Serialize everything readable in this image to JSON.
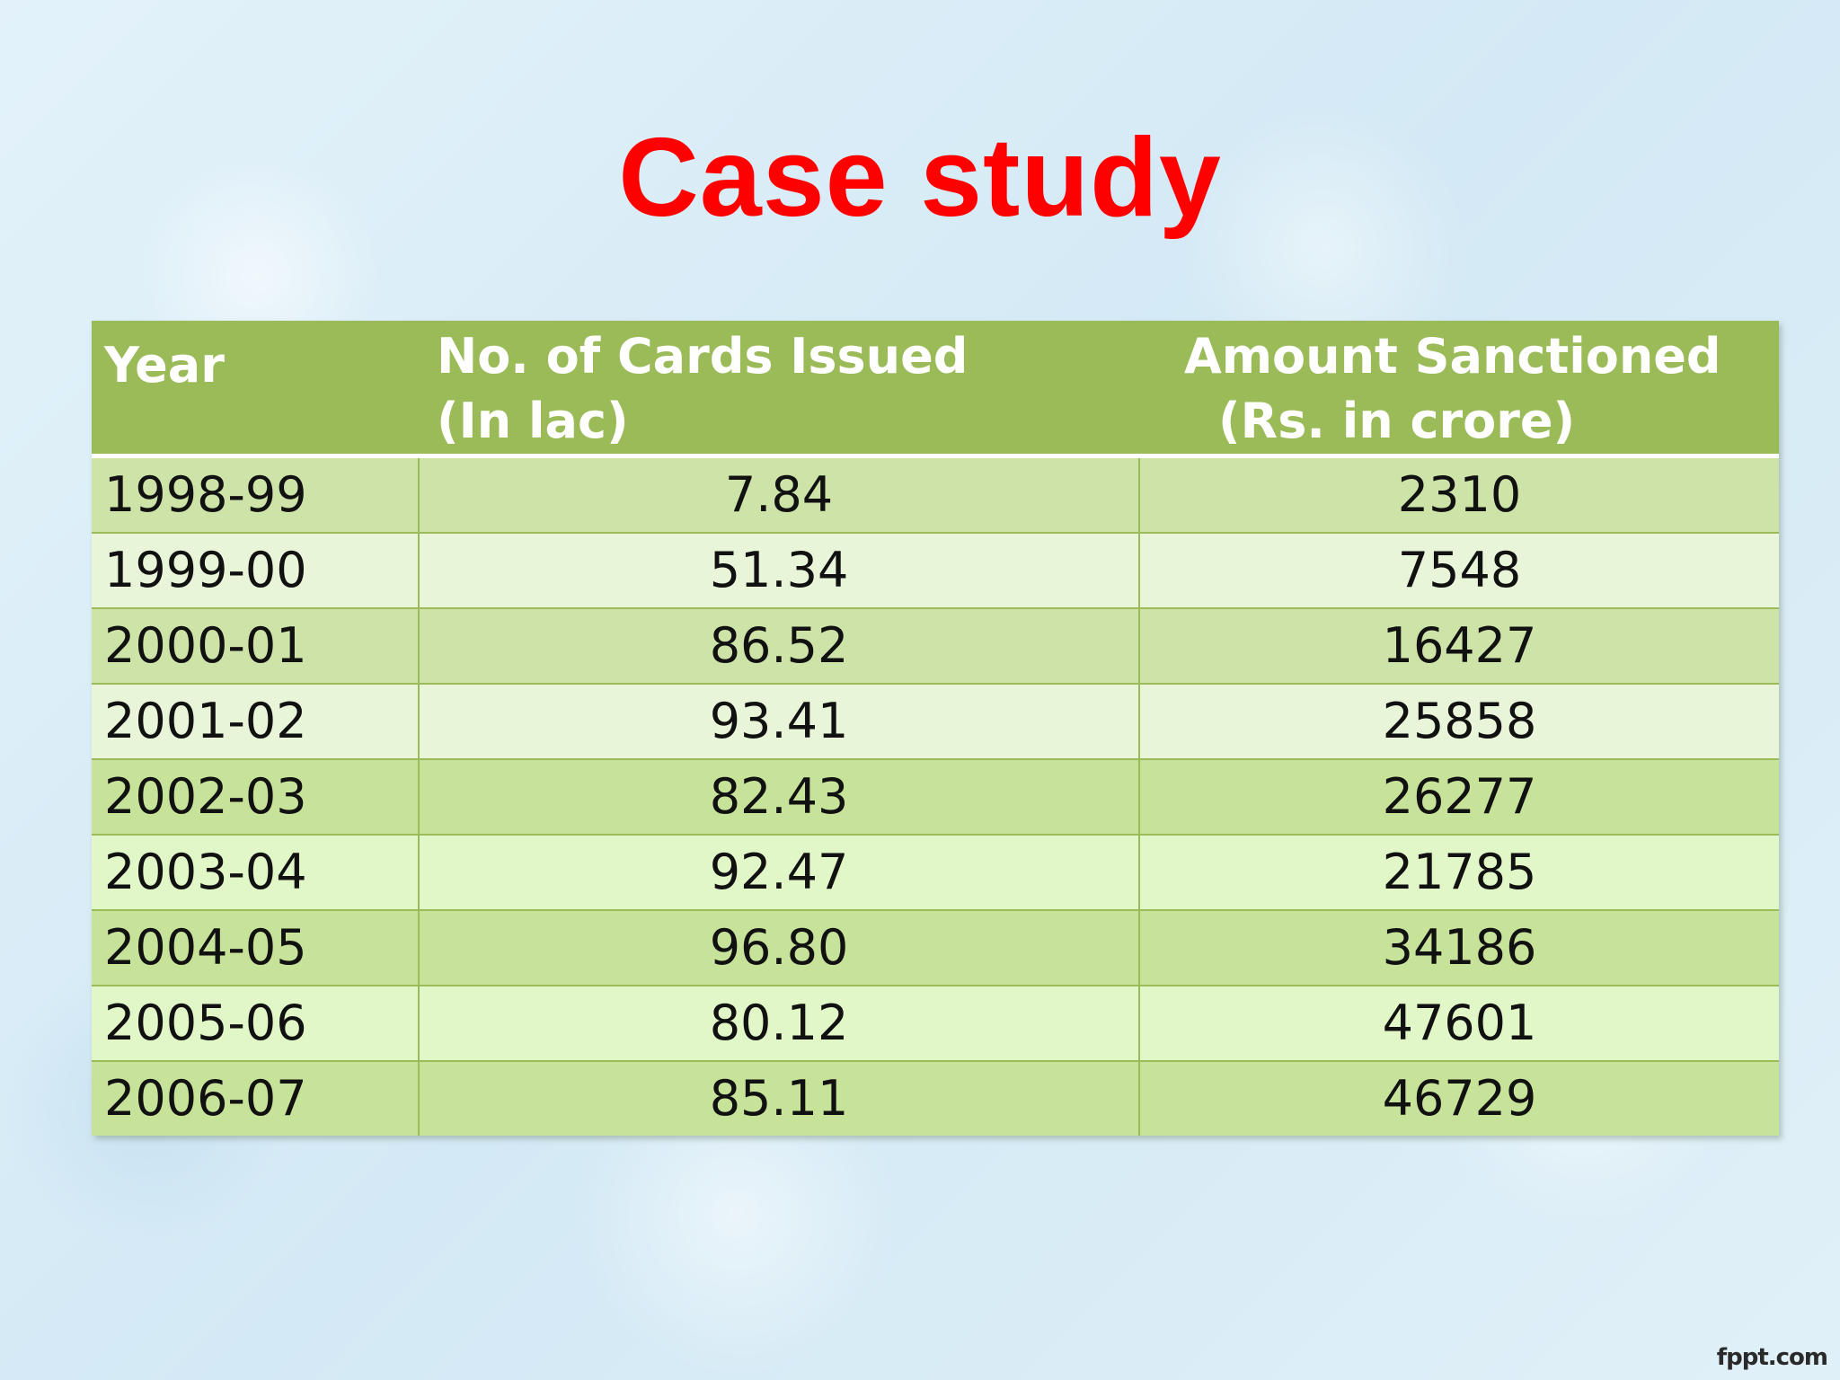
{
  "slide": {
    "title": "Case study",
    "watermark": "fppt.com"
  },
  "table": {
    "headers": {
      "year": "Year",
      "cards_line1": "No. of Cards Issued",
      "cards_line2": "(In lac)",
      "amount_line1": "Amount Sanctioned",
      "amount_line2": "(Rs. in crore)"
    },
    "rows": [
      {
        "year": "1998-99",
        "cards": "7.84",
        "amount": "2310"
      },
      {
        "year": "1999-00",
        "cards": "51.34",
        "amount": "7548"
      },
      {
        "year": "2000-01",
        "cards": "86.52",
        "amount": "16427"
      },
      {
        "year": "2001-02",
        "cards": "93.41",
        "amount": "25858"
      },
      {
        "year": "2002-03",
        "cards": "82.43",
        "amount": "26277"
      },
      {
        "year": "2003-04",
        "cards": "92.47",
        "amount": "21785"
      },
      {
        "year": "2004-05",
        "cards": "96.80",
        "amount": "34186"
      },
      {
        "year": "2005-06",
        "cards": "80.12",
        "amount": "47601"
      },
      {
        "year": "2006-07",
        "cards": "85.11",
        "amount": "46729"
      }
    ]
  },
  "colors": {
    "title": "#ff0000",
    "header_bg": "#9bbb59",
    "row_dark": "#cde3a7",
    "row_light": "#e8f5d8"
  }
}
